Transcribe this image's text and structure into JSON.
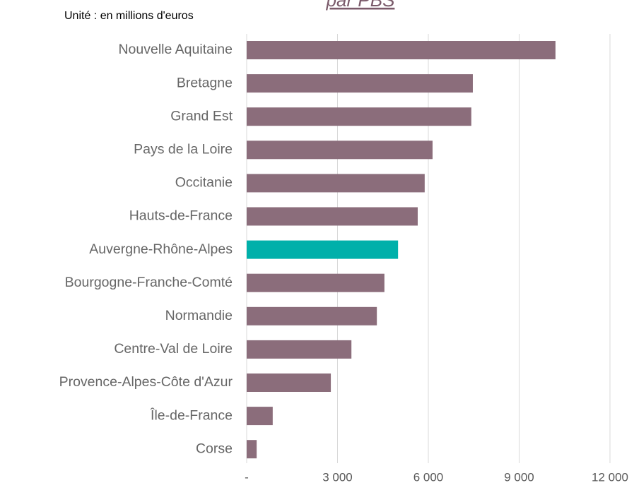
{
  "chart_data": {
    "type": "barh",
    "title": "par PBS",
    "subtitle": "Unité : en millions d'euros",
    "categories": [
      "Nouvelle Aquitaine",
      "Bretagne",
      "Grand Est",
      "Pays de la Loire",
      "Occitanie",
      "Hauts-de-France",
      "Auvergne-Rhône-Alpes",
      "Bourgogne-Franche-Comté",
      "Normandie",
      "Centre-Val de Loire",
      "Provence-Alpes-Côte d'Azur",
      "Île-de-France",
      "Corse"
    ],
    "values": [
      10200,
      7470,
      7420,
      6140,
      5880,
      5650,
      5000,
      4550,
      4300,
      3460,
      2780,
      860,
      330
    ],
    "colors": [
      "#8b6d7b",
      "#8b6d7b",
      "#8b6d7b",
      "#8b6d7b",
      "#8b6d7b",
      "#8b6d7b",
      "#00b0aa",
      "#8b6d7b",
      "#8b6d7b",
      "#8b6d7b",
      "#8b6d7b",
      "#8b6d7b",
      "#8b6d7b"
    ],
    "xlim": [
      0,
      12000
    ],
    "xticks": [
      {
        "value": 0,
        "label": "-"
      },
      {
        "value": 3000,
        "label": "3 000"
      },
      {
        "value": 6000,
        "label": "6 000"
      },
      {
        "value": 9000,
        "label": "9 000"
      },
      {
        "value": 12000,
        "label": "12 000"
      }
    ],
    "grid": true
  }
}
